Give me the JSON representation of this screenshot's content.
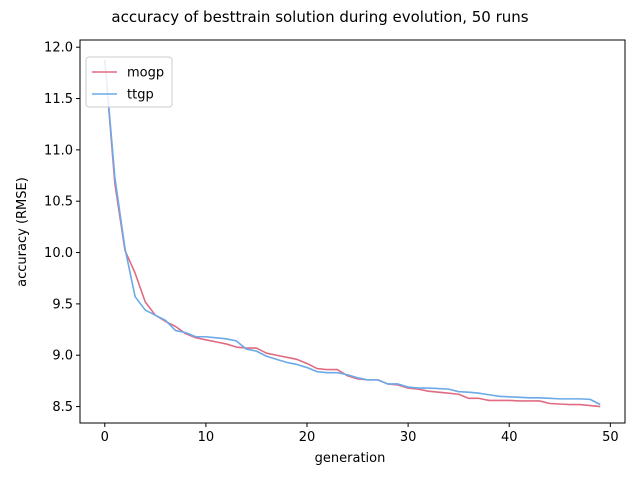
{
  "chart_data": {
    "type": "line",
    "title": "accuracy of besttrain solution during evolution, 50 runs",
    "xlabel": "generation",
    "ylabel": "accuracy (RMSE)",
    "xlim": [
      -2.45,
      51.45
    ],
    "ylim": [
      8.34,
      12.07
    ],
    "xticks": [
      0,
      10,
      20,
      30,
      40,
      50
    ],
    "yticks": [
      8.5,
      9.0,
      9.5,
      10.0,
      10.5,
      11.0,
      11.5,
      12.0
    ],
    "xtick_labels": [
      "0",
      "10",
      "20",
      "30",
      "40",
      "50"
    ],
    "ytick_labels": [
      "8.5",
      "9.0",
      "9.5",
      "10.0",
      "10.5",
      "11.0",
      "11.5",
      "12.0"
    ],
    "grid": false,
    "legend_position": "top-left",
    "x": [
      0,
      1,
      2,
      3,
      4,
      5,
      6,
      7,
      8,
      9,
      10,
      11,
      12,
      13,
      14,
      15,
      16,
      17,
      18,
      19,
      20,
      21,
      22,
      23,
      24,
      25,
      26,
      27,
      28,
      29,
      30,
      31,
      32,
      33,
      34,
      35,
      36,
      37,
      38,
      39,
      40,
      41,
      42,
      43,
      44,
      45,
      46,
      47,
      48,
      49
    ],
    "series": [
      {
        "name": "mogp",
        "color": "#e06c82",
        "values": [
          11.88,
          10.67,
          10.02,
          9.8,
          9.52,
          9.39,
          9.33,
          9.28,
          9.21,
          9.17,
          9.15,
          9.13,
          9.11,
          9.08,
          9.07,
          9.07,
          9.02,
          9.0,
          8.98,
          8.96,
          8.92,
          8.87,
          8.86,
          8.86,
          8.8,
          8.77,
          8.76,
          8.76,
          8.72,
          8.71,
          8.68,
          8.67,
          8.65,
          8.64,
          8.63,
          8.62,
          8.58,
          8.58,
          8.56,
          8.56,
          8.56,
          8.555,
          8.555,
          8.555,
          8.53,
          8.525,
          8.52,
          8.52,
          8.51,
          8.5
        ]
      },
      {
        "name": "ttgp",
        "color": "#6aaae8",
        "values": [
          11.88,
          10.73,
          10.04,
          9.57,
          9.44,
          9.39,
          9.34,
          9.24,
          9.22,
          9.18,
          9.18,
          9.17,
          9.16,
          9.14,
          9.06,
          9.04,
          8.99,
          8.96,
          8.93,
          8.91,
          8.88,
          8.84,
          8.83,
          8.83,
          8.81,
          8.78,
          8.76,
          8.76,
          8.72,
          8.72,
          8.69,
          8.68,
          8.68,
          8.675,
          8.67,
          8.645,
          8.64,
          8.63,
          8.615,
          8.6,
          8.595,
          8.59,
          8.585,
          8.585,
          8.58,
          8.575,
          8.575,
          8.575,
          8.57,
          8.52
        ]
      }
    ]
  }
}
